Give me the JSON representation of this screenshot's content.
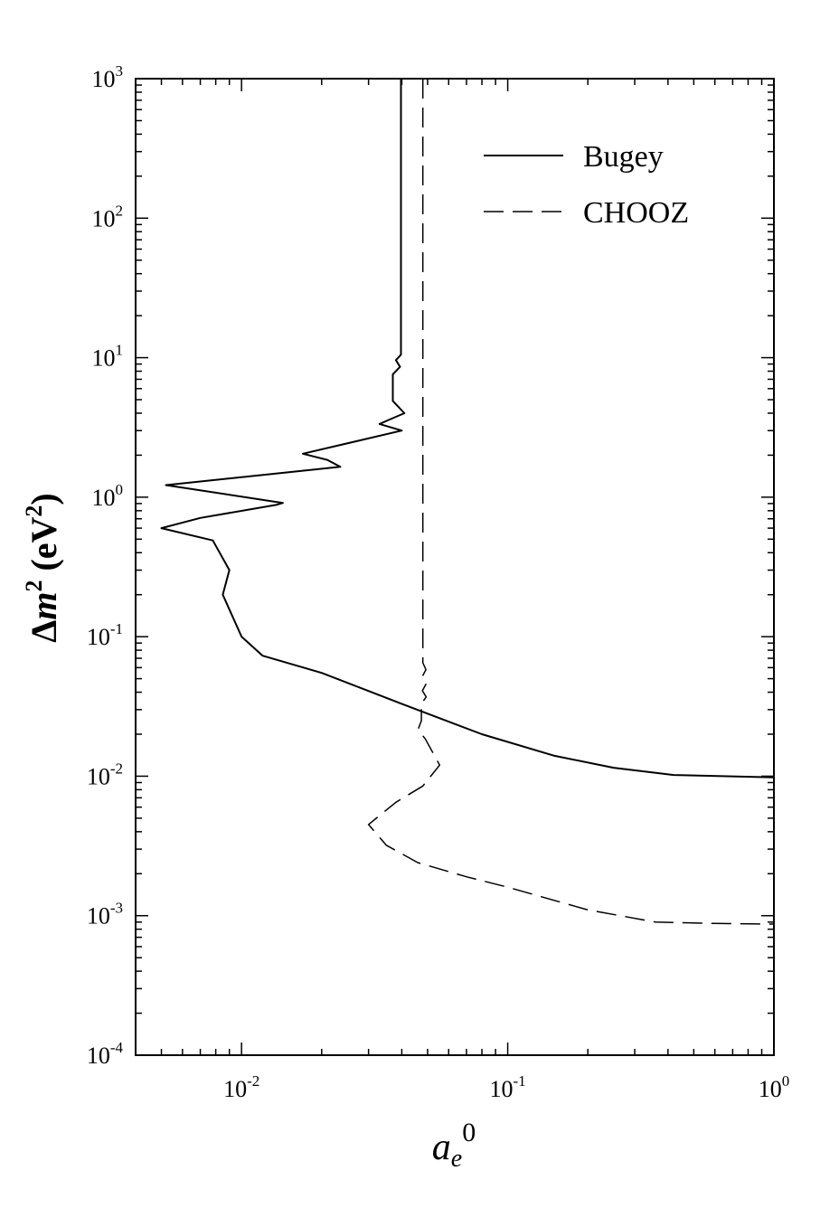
{
  "chart_data": {
    "type": "line",
    "xscale": "log",
    "yscale": "log",
    "xlim": [
      0.004,
      1.0
    ],
    "ylim": [
      0.0001,
      1000
    ],
    "x_ticks": [
      {
        "base": "10",
        "exp": "-2",
        "value": 0.01
      },
      {
        "base": "10",
        "exp": "-1",
        "value": 0.1
      },
      {
        "base": "10",
        "exp": "0",
        "value": 1
      }
    ],
    "y_ticks": [
      {
        "base": "10",
        "exp": "-4",
        "value": 0.0001
      },
      {
        "base": "10",
        "exp": "-3",
        "value": 0.001
      },
      {
        "base": "10",
        "exp": "-2",
        "value": 0.01
      },
      {
        "base": "10",
        "exp": "-1",
        "value": 0.1
      },
      {
        "base": "10",
        "exp": "0",
        "value": 1
      },
      {
        "base": "10",
        "exp": "1",
        "value": 10
      },
      {
        "base": "10",
        "exp": "2",
        "value": 100
      },
      {
        "base": "10",
        "exp": "3",
        "value": 1000
      }
    ],
    "xlabel": {
      "main": "a",
      "sub": "e",
      "sup": "0"
    },
    "ylabel": {
      "delta": "Δ",
      "main": "m",
      "sup1": "2",
      "unit_open": " (eV",
      "sup2": "2",
      "unit_close": ")"
    },
    "legend_position": "top-right",
    "grid": false,
    "series": [
      {
        "name": "Bugey",
        "style": "solid",
        "points": [
          [
            0.0397,
            1000
          ],
          [
            0.0397,
            10.5
          ],
          [
            0.038,
            9.6
          ],
          [
            0.0394,
            8.6
          ],
          [
            0.037,
            7.6
          ],
          [
            0.037,
            4.9
          ],
          [
            0.0409,
            4.0
          ],
          [
            0.036,
            3.6
          ],
          [
            0.033,
            3.35
          ],
          [
            0.04,
            3.0
          ],
          [
            0.017,
            2.05
          ],
          [
            0.021,
            1.85
          ],
          [
            0.0235,
            1.65
          ],
          [
            0.0052,
            1.22
          ],
          [
            0.0143,
            0.91
          ],
          [
            0.0135,
            0.88
          ],
          [
            0.007,
            0.71
          ],
          [
            0.005,
            0.6
          ],
          [
            0.0078,
            0.49
          ],
          [
            0.009,
            0.3
          ],
          [
            0.0085,
            0.2
          ],
          [
            0.01,
            0.1
          ],
          [
            0.012,
            0.073
          ],
          [
            0.02,
            0.055
          ],
          [
            0.04,
            0.033
          ],
          [
            0.08,
            0.02
          ],
          [
            0.15,
            0.014
          ],
          [
            0.25,
            0.0115
          ],
          [
            0.42,
            0.0102
          ],
          [
            1.0,
            0.0098
          ]
        ]
      },
      {
        "name": "CHOOZ",
        "style": "dashed",
        "points": [
          [
            0.048,
            1000
          ],
          [
            0.048,
            0.065
          ],
          [
            0.0493,
            0.058
          ],
          [
            0.0478,
            0.052
          ],
          [
            0.0494,
            0.046
          ],
          [
            0.0478,
            0.041
          ],
          [
            0.0494,
            0.037
          ],
          [
            0.0474,
            0.033
          ],
          [
            0.0474,
            0.025
          ],
          [
            0.046,
            0.0215
          ],
          [
            0.049,
            0.0185
          ],
          [
            0.0555,
            0.012
          ],
          [
            0.048,
            0.0085
          ],
          [
            0.038,
            0.0065
          ],
          [
            0.03,
            0.0045
          ],
          [
            0.035,
            0.0032
          ],
          [
            0.046,
            0.0024
          ],
          [
            0.07,
            0.0019
          ],
          [
            0.1,
            0.0016
          ],
          [
            0.2,
            0.0011
          ],
          [
            0.36,
            0.0009
          ],
          [
            0.6,
            0.00088
          ],
          [
            1.0,
            0.00087
          ]
        ]
      }
    ]
  }
}
